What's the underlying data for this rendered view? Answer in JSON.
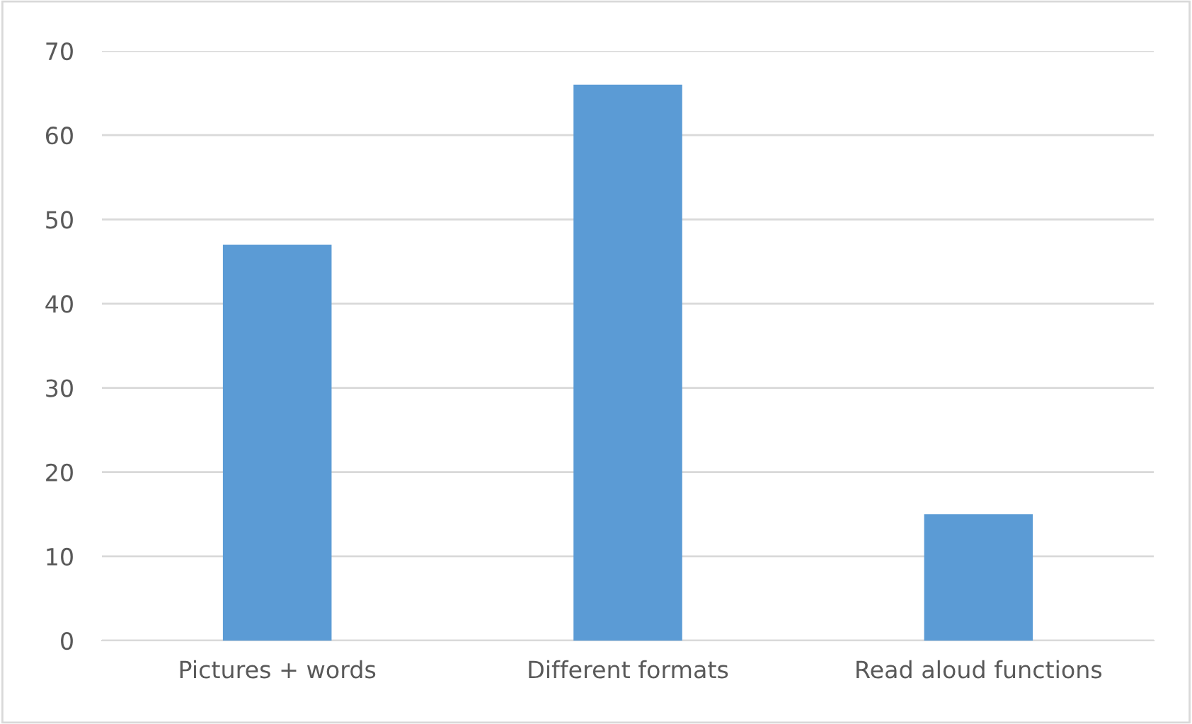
{
  "chart_data": {
    "type": "bar",
    "categories": [
      "Pictures + words",
      "Different formats",
      "Read aloud functions"
    ],
    "values": [
      47,
      66,
      15
    ],
    "color": "#5b9bd5",
    "ylim": [
      0,
      70
    ],
    "yticks": [
      0,
      10,
      20,
      30,
      40,
      50,
      60,
      70
    ],
    "grid": "y",
    "legend": false
  }
}
